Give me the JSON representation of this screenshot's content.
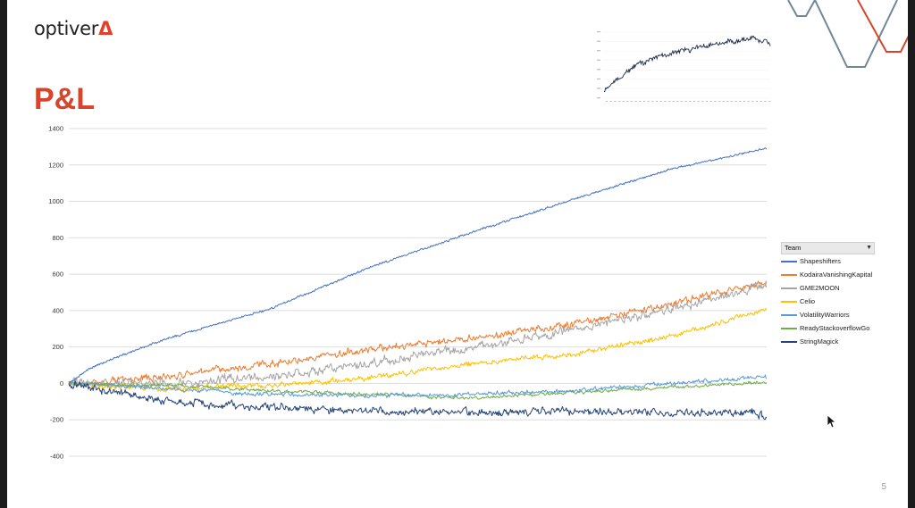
{
  "slide": {
    "logo_text": "optiver",
    "logo_mark": "Δ",
    "title": "P&L",
    "page_number": "5"
  },
  "legend": {
    "header": "Team"
  },
  "colors": {
    "Shapeshifters": "#4472c4",
    "KodairaVanishingKapital": "#ed7d31",
    "GME2MOON": "#a5a5a5",
    "Celio": "#ffc000",
    "VolatilityWarriors": "#5b9bd5",
    "ReadyStackoverflowGo": "#70ad47",
    "StringMagick": "#264478",
    "decor_red": "#d6452b",
    "decor_slate": "#6f8797"
  },
  "chart_data": [
    {
      "type": "line",
      "title": "",
      "xlabel": "",
      "ylabel": "",
      "ylim": [
        -400,
        1400
      ],
      "yticks": [
        -400,
        -200,
        0,
        200,
        400,
        600,
        800,
        1000,
        1200,
        1400
      ],
      "x_range": [
        0,
        3500
      ],
      "grid": true,
      "legend_position": "right",
      "series": [
        {
          "name": "Shapeshifters",
          "x": [
            0,
            100,
            250,
            500,
            1000,
            1500,
            2000,
            2500,
            3000,
            3500
          ],
          "y": [
            0,
            80,
            150,
            250,
            410,
            640,
            830,
            1010,
            1180,
            1300
          ]
        },
        {
          "name": "KodairaVanishingKapital",
          "x": [
            0,
            250,
            500,
            1000,
            1500,
            2000,
            2500,
            3000,
            3500
          ],
          "y": [
            0,
            20,
            40,
            110,
            190,
            250,
            320,
            440,
            560
          ]
        },
        {
          "name": "GME2MOON",
          "x": [
            0,
            250,
            500,
            1000,
            1500,
            2000,
            2500,
            3000,
            3500
          ],
          "y": [
            0,
            0,
            0,
            40,
            110,
            200,
            290,
            410,
            550
          ]
        },
        {
          "name": "Celio",
          "x": [
            0,
            250,
            500,
            1000,
            1500,
            2000,
            2500,
            3000,
            3500
          ],
          "y": [
            0,
            -20,
            -30,
            -10,
            30,
            110,
            160,
            260,
            420
          ]
        },
        {
          "name": "VolatilityWarriors",
          "x": [
            0,
            500,
            1000,
            1500,
            2000,
            2500,
            3000,
            3500
          ],
          "y": [
            0,
            -30,
            -60,
            -70,
            -60,
            -40,
            0,
            40
          ]
        },
        {
          "name": "ReadyStackoverflowGo",
          "x": [
            0,
            500,
            1000,
            1500,
            2000,
            2500,
            3000,
            3500
          ],
          "y": [
            0,
            -10,
            -40,
            -60,
            -80,
            -50,
            -20,
            10
          ]
        },
        {
          "name": "StringMagick",
          "x": [
            0,
            500,
            1000,
            1500,
            2000,
            2500,
            3000,
            3500
          ],
          "y": [
            0,
            -100,
            -130,
            -150,
            -160,
            -150,
            -160,
            -170
          ]
        }
      ]
    },
    {
      "type": "line",
      "title": "",
      "series": [
        {
          "values": [
            10,
            18,
            22,
            30,
            33,
            40,
            44,
            50,
            54,
            52,
            58,
            60,
            62,
            66,
            64,
            68,
            70,
            72,
            74,
            71,
            76,
            78,
            80,
            79,
            82,
            84,
            82,
            85,
            88,
            84,
            87,
            90,
            88,
            92,
            89,
            85,
            88,
            80
          ]
        }
      ]
    }
  ]
}
